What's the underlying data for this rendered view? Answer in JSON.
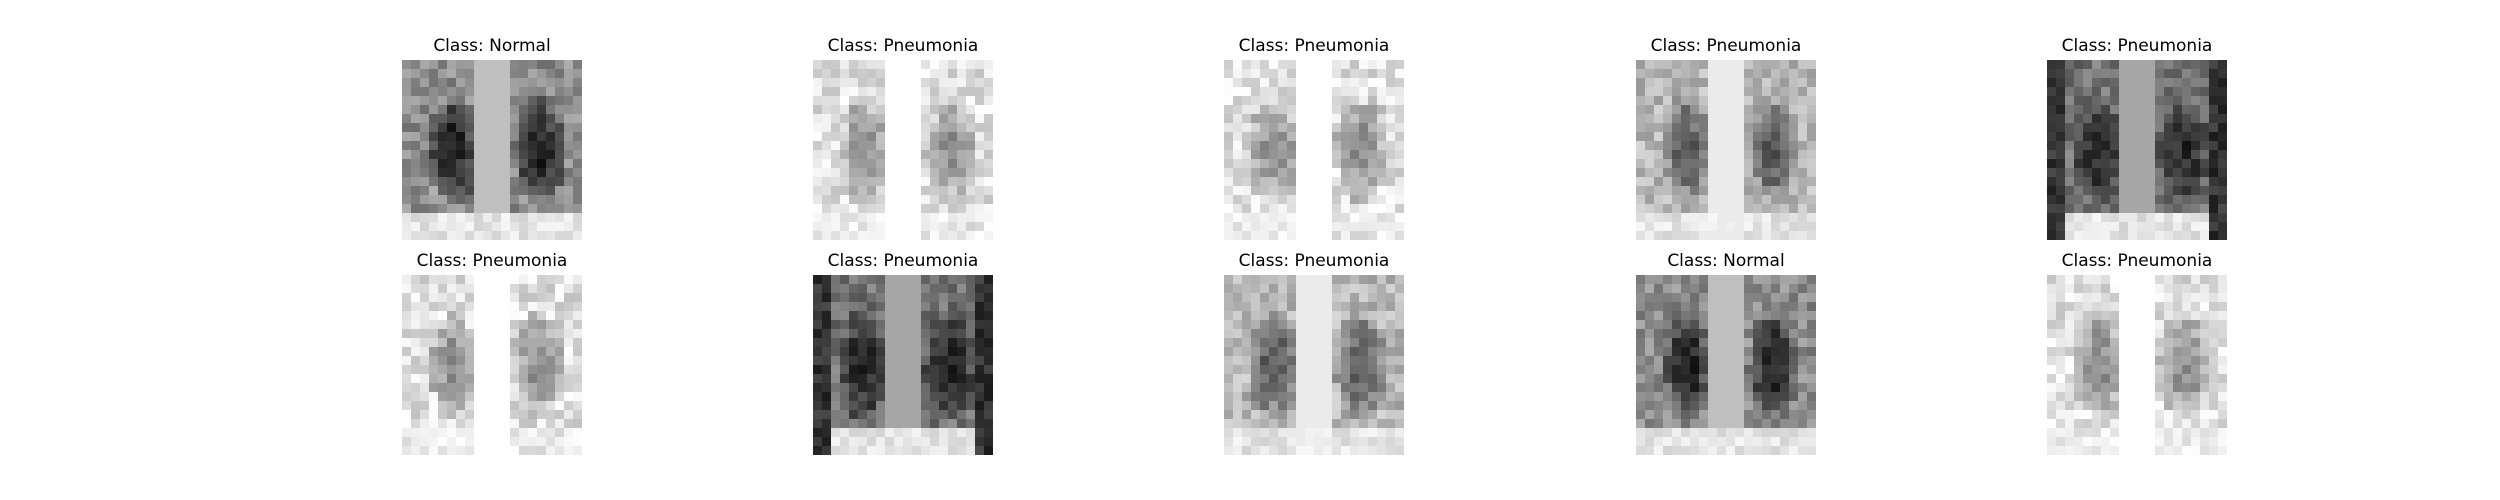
{
  "figure": {
    "panels": [
      {
        "title": "Class: Normal"
      },
      {
        "title": "Class: Pneumonia"
      },
      {
        "title": "Class: Pneumonia"
      },
      {
        "title": "Class: Pneumonia"
      },
      {
        "title": "Class: Pneumonia"
      },
      {
        "title": "Class: Pneumonia"
      },
      {
        "title": "Class: Pneumonia"
      },
      {
        "title": "Class: Pneumonia"
      },
      {
        "title": "Class: Normal"
      },
      {
        "title": "Class: Pneumonia"
      }
    ]
  }
}
